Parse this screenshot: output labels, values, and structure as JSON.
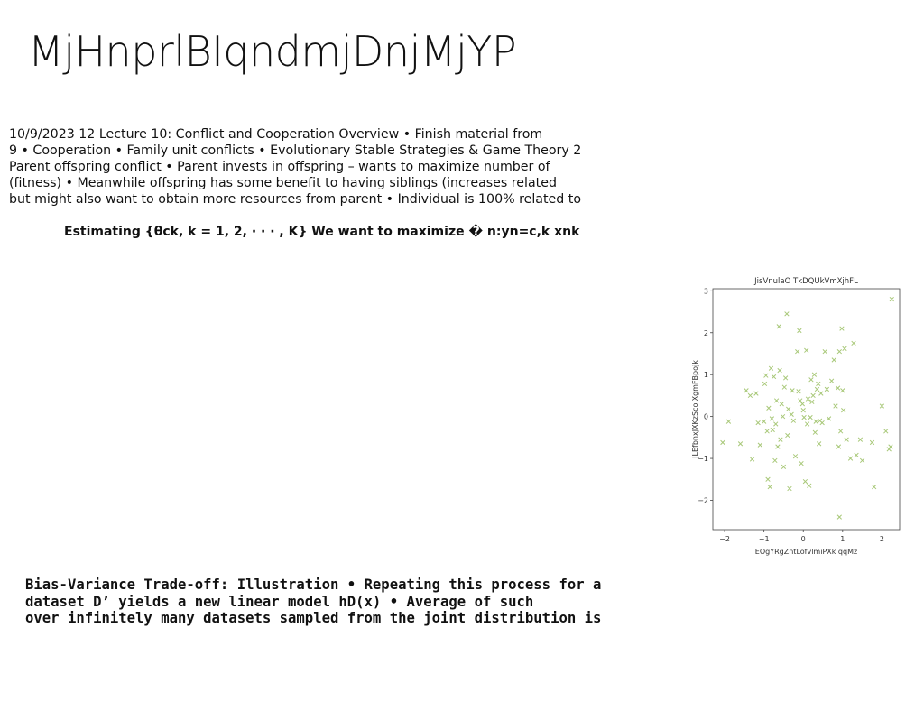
{
  "title": "MjHnprlBIqndmjDnjMjYP",
  "paragraph": {
    "lines": [
      "10/9/2023 12 Lecture 10: Conflict and Cooperation Overview • Finish material from",
      "9 • Cooperation • Family unit conflicts • Evolutionary Stable Strategies & Game Theory 2",
      "Parent offspring conflict • Parent invests in offspring – wants to maximize number of",
      "(fitness) • Meanwhile offspring has some benefit to having siblings (increases related",
      "but might also want to obtain more resources from parent • Individual is 100% related to"
    ]
  },
  "estimating": "Estimating {θck, k = 1, 2, · · · , K} We want to maximize � n:yn=c,k xnk",
  "bias": {
    "lines": [
      "Bias-Variance Trade-off: Illustration • Repeating this process for a",
      "dataset D’ yields a new linear model hD(x) • Average of such",
      "over infinitely many datasets sampled from the joint distribution is"
    ]
  },
  "chart_data": {
    "type": "scatter",
    "title": "JisVnulaO TkDQUkVmXjhFL",
    "xlabel": "EOgYRgZntLofvlmiPXk qqMz",
    "ylabel": "JLEfbnxJXKzScolXgmFBpojk",
    "xlim": [
      -2.3,
      2.45
    ],
    "ylim": [
      -2.7,
      3.05
    ],
    "xticks": [
      -2,
      -1,
      0,
      1,
      2
    ],
    "yticks": [
      -2,
      -1,
      0,
      1,
      2,
      3
    ],
    "marker": "x",
    "color": "#a8c878",
    "grid": false,
    "series": [
      {
        "points": [
          [
            -2.05,
            -0.62
          ],
          [
            -1.9,
            -0.12
          ],
          [
            -1.6,
            -0.65
          ],
          [
            -1.45,
            0.62
          ],
          [
            -1.35,
            0.5
          ],
          [
            -1.3,
            -1.02
          ],
          [
            -1.2,
            0.55
          ],
          [
            -1.15,
            -0.15
          ],
          [
            -1.1,
            -0.68
          ],
          [
            -1.0,
            -0.12
          ],
          [
            -0.98,
            0.78
          ],
          [
            -0.95,
            0.98
          ],
          [
            -0.92,
            -0.35
          ],
          [
            -0.9,
            -1.5
          ],
          [
            -0.88,
            0.2
          ],
          [
            -0.85,
            -1.68
          ],
          [
            -0.82,
            1.15
          ],
          [
            -0.8,
            -0.05
          ],
          [
            -0.78,
            -0.32
          ],
          [
            -0.75,
            0.95
          ],
          [
            -0.72,
            -1.05
          ],
          [
            -0.7,
            -0.18
          ],
          [
            -0.68,
            0.38
          ],
          [
            -0.65,
            -0.72
          ],
          [
            -0.62,
            2.15
          ],
          [
            -0.6,
            1.1
          ],
          [
            -0.58,
            -0.55
          ],
          [
            -0.55,
            0.3
          ],
          [
            -0.52,
            0.0
          ],
          [
            -0.5,
            -1.2
          ],
          [
            -0.48,
            0.7
          ],
          [
            -0.45,
            0.92
          ],
          [
            -0.42,
            2.45
          ],
          [
            -0.4,
            -0.45
          ],
          [
            -0.38,
            0.18
          ],
          [
            -0.35,
            -1.72
          ],
          [
            -0.3,
            0.05
          ],
          [
            -0.28,
            0.62
          ],
          [
            -0.25,
            -0.1
          ],
          [
            -0.2,
            -0.95
          ],
          [
            -0.15,
            1.55
          ],
          [
            -0.12,
            0.6
          ],
          [
            -0.1,
            2.05
          ],
          [
            -0.08,
            0.38
          ],
          [
            -0.05,
            -1.12
          ],
          [
            -0.02,
            0.3
          ],
          [
            0.0,
            0.15
          ],
          [
            0.02,
            -0.02
          ],
          [
            0.05,
            -1.55
          ],
          [
            0.08,
            1.58
          ],
          [
            0.1,
            -0.18
          ],
          [
            0.12,
            0.42
          ],
          [
            0.15,
            -1.65
          ],
          [
            0.18,
            -0.02
          ],
          [
            0.2,
            0.88
          ],
          [
            0.22,
            0.35
          ],
          [
            0.25,
            0.5
          ],
          [
            0.28,
            1.0
          ],
          [
            0.3,
            -0.38
          ],
          [
            0.32,
            -0.12
          ],
          [
            0.35,
            0.65
          ],
          [
            0.38,
            0.78
          ],
          [
            0.4,
            -0.65
          ],
          [
            0.42,
            -0.1
          ],
          [
            0.45,
            0.55
          ],
          [
            0.48,
            -0.15
          ],
          [
            0.55,
            1.55
          ],
          [
            0.6,
            0.65
          ],
          [
            0.65,
            -0.05
          ],
          [
            0.72,
            0.85
          ],
          [
            0.78,
            1.35
          ],
          [
            0.82,
            0.25
          ],
          [
            0.88,
            0.68
          ],
          [
            0.9,
            -0.72
          ],
          [
            0.92,
            1.55
          ],
          [
            0.95,
            -0.35
          ],
          [
            0.98,
            2.1
          ],
          [
            1.0,
            0.62
          ],
          [
            1.02,
            0.15
          ],
          [
            1.05,
            1.62
          ],
          [
            1.1,
            -0.55
          ],
          [
            1.2,
            -1.0
          ],
          [
            1.28,
            1.75
          ],
          [
            1.35,
            -0.92
          ],
          [
            1.45,
            -0.55
          ],
          [
            1.5,
            -1.05
          ],
          [
            1.75,
            -0.62
          ],
          [
            1.8,
            -1.68
          ],
          [
            2.0,
            0.25
          ],
          [
            2.1,
            -0.35
          ],
          [
            2.18,
            -0.78
          ],
          [
            2.22,
            -0.72
          ],
          [
            2.25,
            2.8
          ],
          [
            0.92,
            -2.4
          ]
        ]
      }
    ]
  }
}
